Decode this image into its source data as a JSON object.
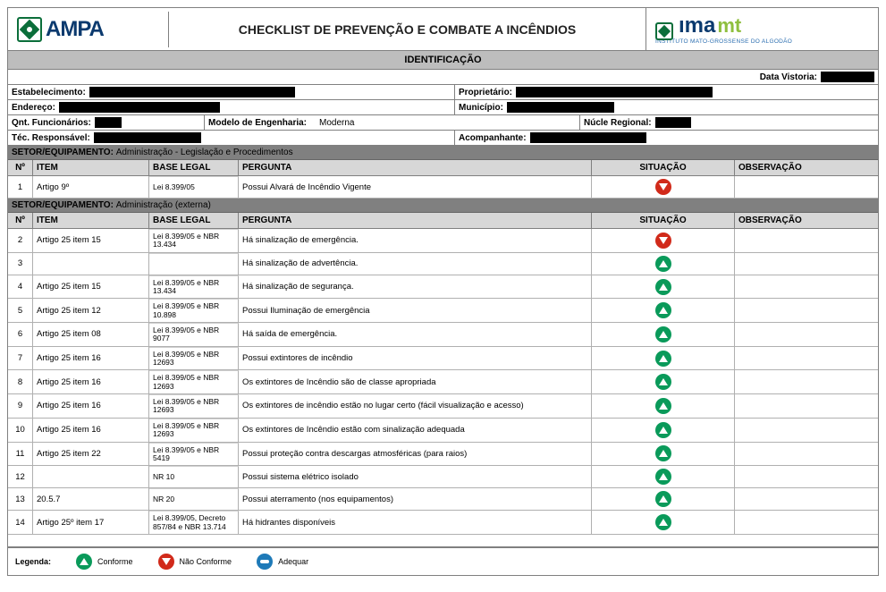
{
  "header": {
    "logo_left": "AMPA",
    "title": "CHECKLIST DE PREVENÇÃO E COMBATE A INCÊNDIOS",
    "logo_right_a": "ıma",
    "logo_right_b": "mt",
    "logo_right_sub": "INSTITUTO MATO-GROSSENSE DO ALGODÃO"
  },
  "section_ident": "IDENTIFICAÇÃO",
  "ident": {
    "data_vistoria_lbl": "Data Vistoria:",
    "estab_lbl": "Estabelecimento:",
    "prop_lbl": "Proprietário:",
    "end_lbl": "Endereço:",
    "mun_lbl": "Município:",
    "qnt_lbl": "Qnt. Funcionários:",
    "mod_lbl": "Modelo de Engenharia:",
    "mod_val": "Moderna",
    "nucle_lbl": "Núcle Regional:",
    "tec_lbl": "Téc. Responsável:",
    "acomp_lbl": "Acompanhante:"
  },
  "group_prefix": "SETOR/EQUIPAMENTO:",
  "thead": {
    "n": "Nº",
    "item": "ITEM",
    "base": "BASE LEGAL",
    "perg": "PERGUNTA",
    "sit": "SITUAÇÃO",
    "obs": "OBSERVAÇÃO"
  },
  "groups": [
    {
      "name": "Administração - Legislação e Procedimentos",
      "rows": [
        {
          "n": "1",
          "item": "Artigo 9º",
          "base": "Lei 8.399/05",
          "perg": "Possui Alvará de Incêndio Vigente",
          "sit": "down"
        }
      ]
    },
    {
      "name": "Administração (externa)",
      "rows": [
        {
          "n": "2",
          "item": "Artigo 25 item 15",
          "base": "Lei 8.399/05 e NBR 13.434",
          "perg": "Há sinalização de emergência.",
          "sit": "down"
        },
        {
          "n": "3",
          "item": "",
          "base": "",
          "perg": "Há sinalização de advertência.",
          "sit": "up"
        },
        {
          "n": "4",
          "item": "Artigo 25 item 15",
          "base": "Lei 8.399/05 e NBR 13.434",
          "perg": "Há sinalização de segurança.",
          "sit": "up"
        },
        {
          "n": "5",
          "item": "Artigo 25 item 12",
          "base": "Lei 8.399/05 e NBR 10.898",
          "perg": "Possui Iluminação de emergência",
          "sit": "up"
        },
        {
          "n": "6",
          "item": "Artigo 25 item 08",
          "base": "Lei 8.399/05 e NBR 9077",
          "perg": "Há saída de emergência.",
          "sit": "up"
        },
        {
          "n": "7",
          "item": "Artigo 25 item 16",
          "base": "Lei 8.399/05 e NBR 12693",
          "perg": "Possui extintores de incêndio",
          "sit": "up"
        },
        {
          "n": "8",
          "item": "Artigo 25 item 16",
          "base": "Lei 8.399/05 e NBR 12693",
          "perg": "Os extintores de Incêndio são de classe apropriada",
          "sit": "up"
        },
        {
          "n": "9",
          "item": "Artigo 25 item 16",
          "base": "Lei 8.399/05 e NBR 12693",
          "perg": "Os extintores de incêndio estão no lugar certo (fácil visualização e acesso)",
          "sit": "up"
        },
        {
          "n": "10",
          "item": "Artigo 25 item 16",
          "base": "Lei 8.399/05 e NBR 12693",
          "perg": "Os extintores de Incêndio estão com sinalização adequada",
          "sit": "up"
        },
        {
          "n": "11",
          "item": "Artigo 25 item 22",
          "base": "Lei 8.399/05 e NBR 5419",
          "perg": "Possui proteção contra descargas atmosféricas (para raios)",
          "sit": "up"
        },
        {
          "n": "12",
          "item": "",
          "base": "NR 10",
          "perg": "Possui sistema elétrico isolado",
          "sit": "up"
        },
        {
          "n": "13",
          "item": "20.5.7",
          "base": "NR 20",
          "perg": "Possui aterramento (nos equipamentos)",
          "sit": "up"
        },
        {
          "n": "14",
          "item": "Artigo 25º item  17",
          "base": "Lei 8.399/05, Decreto 857/84 e NBR 13.714",
          "perg": "Há hidrantes disponíveis",
          "sit": "up"
        }
      ]
    }
  ],
  "legend": {
    "label": "Legenda:",
    "conforme": "Conforme",
    "nao_conforme": "Não Conforme",
    "adequar": "Adequar"
  },
  "colors": {
    "green": "#0a9a5a",
    "red": "#d12a1a",
    "blue": "#1e7ab8",
    "grey_bar": "#bdbdbd",
    "dark_grey": "#808080"
  }
}
